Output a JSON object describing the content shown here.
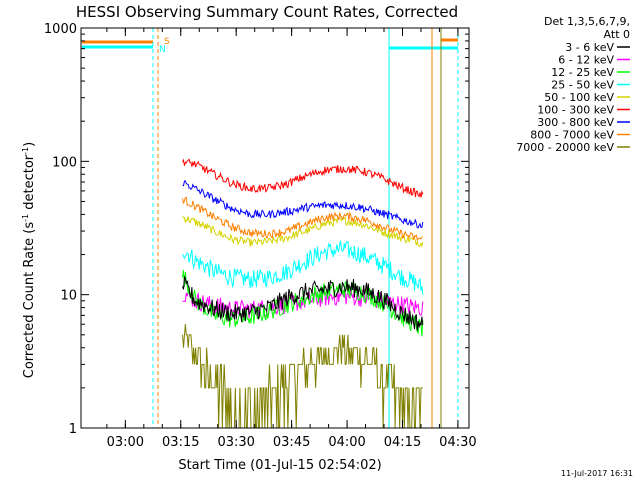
{
  "chart_data": {
    "type": "line",
    "title": "HESSI Observing Summary Count Rates, Corrected",
    "xlabel": "Start Time (01-Jul-15 02:54:02)",
    "ylabel_main": "Corrected Count Rate (s",
    "ylabel_sup1": "-1",
    "ylabel_mid": " detector",
    "ylabel_sup2": "-1",
    "ylabel_end": ")",
    "y_scale": "log",
    "ylim": [
      1,
      1000
    ],
    "xlim_min": [
      -6,
      99
    ],
    "x_ticks": [
      {
        "m": 6,
        "label": "03:00"
      },
      {
        "m": 21,
        "label": "03:15"
      },
      {
        "m": 36,
        "label": "03:30"
      },
      {
        "m": 51,
        "label": "03:45"
      },
      {
        "m": 66,
        "label": "04:00"
      },
      {
        "m": 81,
        "label": "04:15"
      },
      {
        "m": 96,
        "label": "04:30"
      }
    ],
    "y_ticks": [
      {
        "v": 1,
        "label": "1"
      },
      {
        "v": 10,
        "label": "10"
      },
      {
        "v": 100,
        "label": "100"
      },
      {
        "v": 1000,
        "label": "1000"
      }
    ],
    "legend_header": [
      "Det 1,3,5,6,7,9,",
      "Att 0"
    ],
    "legend_position": "top-right outside plot",
    "series": [
      {
        "name": "3 - 6 keV",
        "color": "#000000",
        "x": [
          21.5,
          25,
          30,
          35,
          40,
          45,
          50,
          55,
          60,
          65,
          70,
          75,
          80,
          85,
          86.5
        ],
        "values": [
          12,
          9,
          7.8,
          7.2,
          7.4,
          8,
          9.5,
          10.5,
          11,
          11.5,
          11,
          9.5,
          7.5,
          6.2,
          6
        ]
      },
      {
        "name": "6 - 12 keV",
        "color": "#ff00ff",
        "x": [
          21.5,
          25,
          30,
          35,
          40,
          45,
          50,
          55,
          60,
          65,
          70,
          75,
          80,
          85,
          86.5
        ],
        "values": [
          10.5,
          9,
          8.3,
          7.8,
          7.8,
          8,
          8.5,
          9,
          9.5,
          9.8,
          9.5,
          9,
          8.5,
          8,
          8
        ]
      },
      {
        "name": "12 - 25 keV",
        "color": "#00ff00",
        "x": [
          21.5,
          25,
          30,
          35,
          40,
          45,
          50,
          55,
          60,
          65,
          70,
          75,
          80,
          85,
          86.5
        ],
        "values": [
          14,
          9,
          7,
          6.5,
          6.8,
          7.5,
          8.5,
          9.5,
          10.5,
          11,
          10.5,
          9,
          7,
          5.8,
          5.5
        ]
      },
      {
        "name": "25 - 50 keV",
        "color": "#00ffff",
        "x": [
          21.5,
          25,
          30,
          35,
          40,
          45,
          50,
          55,
          60,
          65,
          70,
          75,
          80,
          85,
          86.5
        ],
        "values": [
          22,
          18,
          15,
          13.5,
          13,
          13.5,
          15,
          18,
          21,
          22,
          20,
          17,
          14,
          12,
          11
        ]
      },
      {
        "name": "50 - 100 keV",
        "color": "#d4d400",
        "x": [
          21.5,
          25,
          30,
          35,
          40,
          45,
          50,
          55,
          60,
          65,
          70,
          75,
          80,
          85,
          86.5
        ],
        "values": [
          38,
          35,
          30,
          26,
          24.5,
          25,
          27,
          30,
          34,
          36,
          34,
          30,
          27,
          25,
          24
        ]
      },
      {
        "name": "100 - 300 keV",
        "color": "#ff0000",
        "x": [
          21.5,
          25,
          30,
          35,
          40,
          45,
          50,
          55,
          60,
          65,
          70,
          75,
          80,
          85,
          86.5
        ],
        "values": [
          100,
          95,
          80,
          68,
          62,
          63,
          68,
          78,
          86,
          88,
          85,
          76,
          65,
          57,
          55
        ]
      },
      {
        "name": "300 - 800 keV",
        "color": "#0000ff",
        "x": [
          21.5,
          25,
          30,
          35,
          40,
          45,
          50,
          55,
          60,
          65,
          70,
          75,
          80,
          85,
          86.5
        ],
        "values": [
          70,
          62,
          52,
          44,
          40,
          40,
          42,
          45,
          47,
          47,
          45,
          41,
          37,
          34,
          33
        ]
      },
      {
        "name": "800 - 7000 keV",
        "color": "#ff8000",
        "x": [
          21.5,
          25,
          30,
          35,
          40,
          45,
          50,
          55,
          60,
          65,
          70,
          75,
          80,
          85,
          86.5
        ],
        "values": [
          52,
          46,
          38,
          32,
          29,
          28.5,
          30,
          34,
          38,
          39,
          37,
          33,
          29,
          26.5,
          26
        ]
      },
      {
        "name": "7000 - 20000 keV",
        "color": "#808000",
        "x": [
          21.5,
          25,
          30,
          35,
          40,
          45,
          50,
          55,
          60,
          65,
          70,
          75,
          80,
          85,
          86.5
        ],
        "values": [
          5,
          3.5,
          2.2,
          1.5,
          1.3,
          1.5,
          2.2,
          3,
          3.6,
          4,
          3.5,
          2.5,
          1.6,
          1.2,
          1.1
        ]
      }
    ],
    "flag_annotations": [
      "S",
      "N"
    ],
    "grid": false
  },
  "footer": {
    "timestamp": "11-Jul-2017 16:31"
  }
}
